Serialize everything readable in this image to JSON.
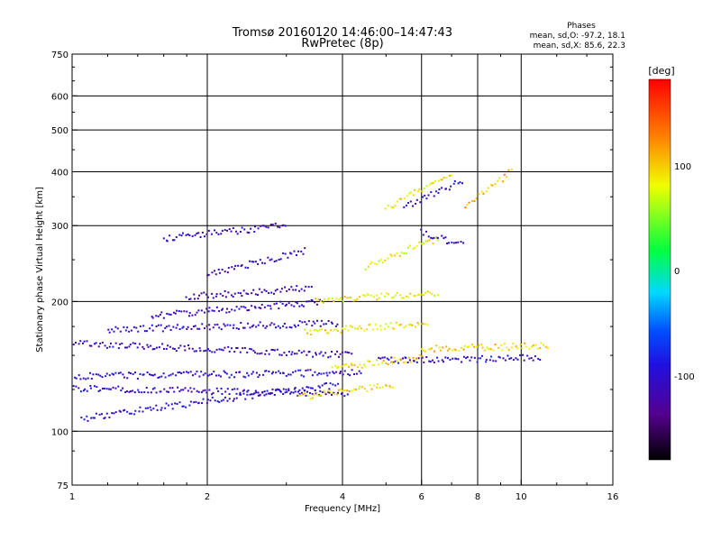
{
  "chart_data": {
    "type": "scatter",
    "title": "Tromsø 20160120 14:46:00–14:47:43",
    "subtitle": "RwPretec (8p)",
    "xlabel": "Frequency [MHz]",
    "ylabel": "Stationary phase Virtual Height [km]",
    "xscale": "log",
    "yscale": "log",
    "xlim": [
      1,
      16
    ],
    "ylim": [
      75,
      750
    ],
    "x_ticks": [
      "1",
      "2",
      "4",
      "6",
      "8",
      "10",
      "16"
    ],
    "y_ticks": [
      "75",
      "100",
      "200",
      "300",
      "400",
      "500",
      "600",
      "750"
    ],
    "grid": true,
    "stats": {
      "heading": "Phases",
      "line1": "mean, sd,O: -97.2, 18.1",
      "line2": "mean, sd,X:  85.6, 22.3"
    },
    "colorbar": {
      "label": "[deg]",
      "range": [
        -180,
        180
      ],
      "ticks": [
        "100",
        "0",
        "-100"
      ],
      "colormap": "rainbow (black-purple-blue-cyan-green-yellow-red)"
    },
    "series": [
      {
        "name": "O",
        "phase_mean": -97.2,
        "tracks": [
          {
            "x0": 1.05,
            "x1": 3.9,
            "y0": 107,
            "y1": 128,
            "phase": -100
          },
          {
            "x0": 1.0,
            "x1": 4.1,
            "y0": 126,
            "y1": 122,
            "phase": -105
          },
          {
            "x0": 1.0,
            "x1": 4.4,
            "y0": 134,
            "y1": 137,
            "phase": -100
          },
          {
            "x0": 1.0,
            "x1": 4.2,
            "y0": 160,
            "y1": 150,
            "phase": -110
          },
          {
            "x0": 1.2,
            "x1": 3.9,
            "y0": 172,
            "y1": 178,
            "phase": -105
          },
          {
            "x0": 1.5,
            "x1": 3.6,
            "y0": 185,
            "y1": 200,
            "phase": -115
          },
          {
            "x0": 1.8,
            "x1": 3.4,
            "y0": 205,
            "y1": 215,
            "phase": -120
          },
          {
            "x0": 2.0,
            "x1": 3.3,
            "y0": 230,
            "y1": 262,
            "phase": -115
          },
          {
            "x0": 1.6,
            "x1": 3.0,
            "y0": 280,
            "y1": 300,
            "phase": -110
          },
          {
            "x0": 4.8,
            "x1": 11.0,
            "y0": 146,
            "y1": 148,
            "phase": -100
          },
          {
            "x0": 6.0,
            "x1": 7.4,
            "y0": 290,
            "y1": 270,
            "phase": -105
          },
          {
            "x0": 5.5,
            "x1": 7.4,
            "y0": 330,
            "y1": 380,
            "phase": -100
          }
        ]
      },
      {
        "name": "X",
        "phase_mean": 85.6,
        "tracks": [
          {
            "x0": 3.3,
            "x1": 6.2,
            "y0": 170,
            "y1": 178,
            "phase": 90
          },
          {
            "x0": 3.5,
            "x1": 6.5,
            "y0": 200,
            "y1": 210,
            "phase": 85
          },
          {
            "x0": 3.8,
            "x1": 6.0,
            "y0": 140,
            "y1": 148,
            "phase": 95
          },
          {
            "x0": 3.2,
            "x1": 5.2,
            "y0": 120,
            "y1": 128,
            "phase": 90
          },
          {
            "x0": 4.5,
            "x1": 6.5,
            "y0": 240,
            "y1": 280,
            "phase": 80
          },
          {
            "x0": 6.0,
            "x1": 11.5,
            "y0": 155,
            "y1": 158,
            "phase": 95
          },
          {
            "x0": 5.0,
            "x1": 7.0,
            "y0": 330,
            "y1": 390,
            "phase": 85
          },
          {
            "x0": 7.5,
            "x1": 9.5,
            "y0": 330,
            "y1": 400,
            "phase": 110
          }
        ]
      }
    ]
  }
}
